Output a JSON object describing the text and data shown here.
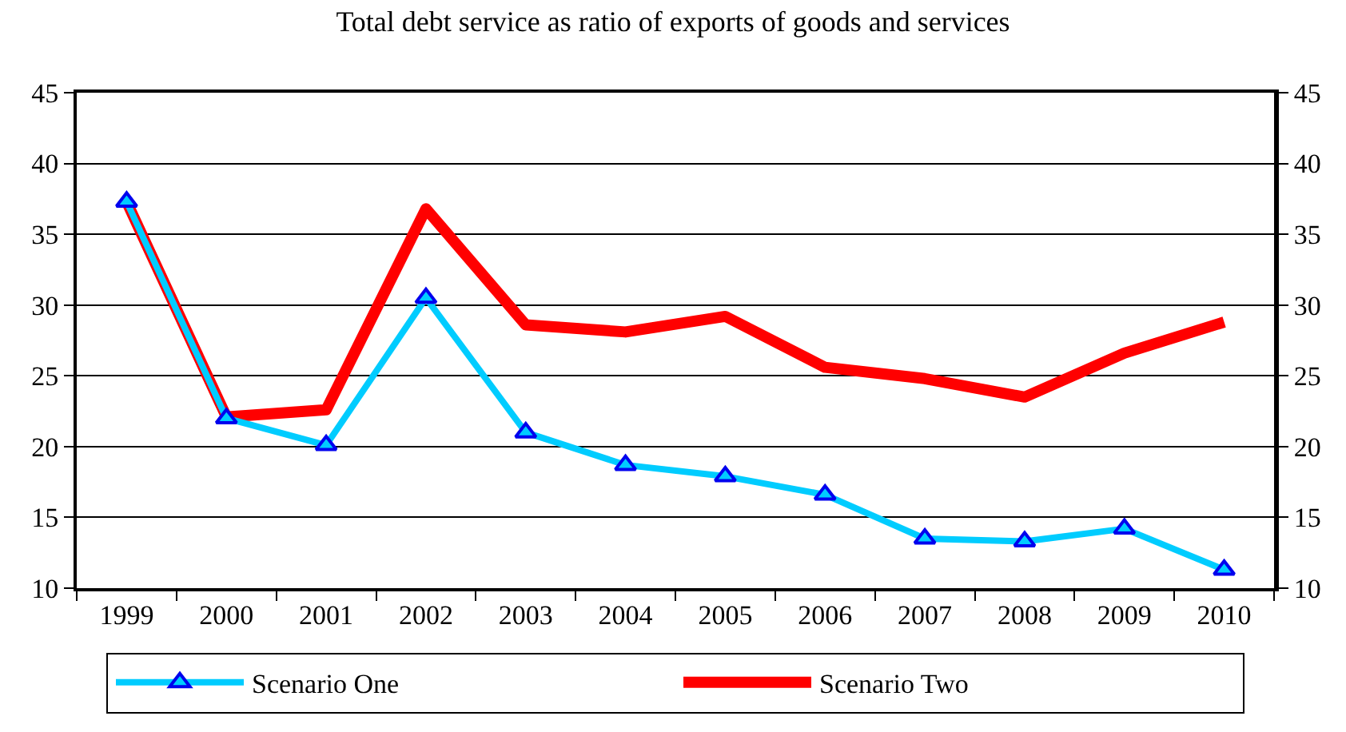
{
  "chart_data": {
    "type": "line",
    "title": "Total debt service as ratio of exports of goods and services",
    "categories": [
      "1999",
      "2000",
      "2001",
      "2002",
      "2003",
      "2004",
      "2005",
      "2006",
      "2007",
      "2008",
      "2009",
      "2010"
    ],
    "series": [
      {
        "name": "Scenario One",
        "color": "#00ccff",
        "marker": "triangle",
        "values": [
          37.3,
          22.0,
          20.1,
          30.5,
          21.0,
          18.7,
          17.9,
          16.6,
          13.5,
          13.3,
          14.2,
          11.3
        ]
      },
      {
        "name": "Scenario Two",
        "color": "#ff0000",
        "marker": "none",
        "values": [
          37.3,
          22.1,
          22.6,
          36.8,
          28.6,
          28.1,
          29.2,
          25.6,
          24.8,
          23.5,
          26.6,
          28.8
        ]
      }
    ],
    "ylim": [
      10,
      45
    ],
    "yticks": [
      10,
      15,
      20,
      25,
      30,
      35,
      40,
      45
    ],
    "y2lim": [
      10,
      45
    ],
    "y2ticks": [
      10,
      15,
      20,
      25,
      30,
      35,
      40,
      45
    ],
    "grid": "y",
    "legend": "bottom",
    "line_style": "solid"
  }
}
